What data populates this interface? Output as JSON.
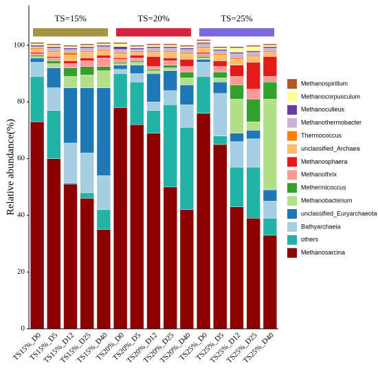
{
  "chart_data": {
    "type": "stacked_bar",
    "y_label": "Relative abundance(%)",
    "ylim": [
      0,
      114
    ],
    "yticks": [
      0,
      20,
      40,
      60,
      80,
      100
    ],
    "groups": [
      {
        "name": "TS=15%",
        "color": "#a8973a"
      },
      {
        "name": "TS=20%",
        "color": "#d6243f"
      },
      {
        "name": "TS=25%",
        "color": "#7b68e6"
      }
    ],
    "categories": [
      "TS15%_D0",
      "TS15%_D5",
      "TS15%_D12",
      "TS15%_D25",
      "TS15%_D40",
      "TS20%_D0",
      "TS20%_D5",
      "TS20%_D12",
      "TS20%_D25",
      "TS20%_D40",
      "TS25%_D0",
      "TS25%_D5",
      "TS25%_D12",
      "TS25%_D25",
      "TS25%_D40"
    ],
    "series": [
      {
        "name": "Methanosarcina",
        "color": "#8b0000",
        "values": [
          73,
          60,
          51,
          46,
          35,
          78,
          72,
          69,
          50,
          42,
          76,
          65,
          43,
          39,
          33
        ]
      },
      {
        "name": "others",
        "color": "#22b3a6",
        "values": [
          16,
          17,
          0.5,
          2,
          7,
          12,
          15,
          8,
          29,
          29,
          13,
          3,
          14,
          18,
          6
        ]
      },
      {
        "name": "Bathyarchaeia",
        "color": "#a6cee3",
        "values": [
          5,
          8,
          14,
          14,
          12,
          1.5,
          3,
          3,
          5,
          8,
          5,
          15,
          9,
          10,
          6
        ]
      },
      {
        "name": "unclassified_Euryarchaeota",
        "color": "#1f78b4",
        "values": [
          1.5,
          7,
          19.5,
          23,
          31,
          1.5,
          3,
          10,
          7,
          7,
          1,
          4,
          3,
          3,
          4
        ]
      },
      {
        "name": "Methanobacterium",
        "color": "#b2df8a",
        "values": [
          0.5,
          1.5,
          4,
          4.5,
          6,
          0.5,
          1,
          1,
          1,
          2.5,
          0.5,
          1.5,
          12,
          3,
          32
        ]
      },
      {
        "name": "Methermicoccus",
        "color": "#33a02c",
        "values": [
          0.5,
          1,
          3,
          3,
          1.5,
          0.5,
          0.5,
          0.5,
          1,
          2,
          0.5,
          2,
          5,
          8,
          6
        ]
      },
      {
        "name": "Methanothrix",
        "color": "#fb9a99",
        "values": [
          0.5,
          1,
          1.5,
          2,
          3,
          1,
          1,
          1,
          1.5,
          2,
          1,
          2,
          3,
          3.5,
          2
        ]
      },
      {
        "name": "Methanosphaera",
        "color": "#e31a1c",
        "values": [
          0.5,
          0.5,
          1,
          1,
          1,
          0.5,
          1,
          3.5,
          1,
          2.5,
          0.5,
          2,
          4,
          9.5,
          7
        ]
      },
      {
        "name": "unclassified_Archaea",
        "color": "#fdbf6f",
        "values": [
          1,
          1.5,
          2,
          2,
          1.5,
          1.5,
          1,
          1.5,
          2,
          2,
          1.5,
          2,
          2,
          2,
          1.5
        ]
      },
      {
        "name": "Thermococcus",
        "color": "#ff7f00",
        "values": [
          0.5,
          0.5,
          1,
          0.5,
          0.5,
          0.5,
          0.5,
          0.5,
          0.5,
          0.5,
          0.5,
          0.5,
          0.5,
          0.5,
          0.5
        ]
      },
      {
        "name": "Methanothermobacter",
        "color": "#cab2d6",
        "values": [
          0.5,
          1,
          1,
          1,
          1,
          1,
          0.5,
          1,
          1,
          1,
          1,
          1,
          1.5,
          1,
          1
        ]
      },
      {
        "name": "Methanoculleus",
        "color": "#6a3d9a",
        "values": [
          0.5,
          0.5,
          0.5,
          0.5,
          0.5,
          1,
          0.5,
          0.5,
          0.5,
          0.5,
          0.5,
          0.5,
          0.5,
          0.5,
          0.5
        ]
      },
      {
        "name": "Methanocorpusculum",
        "color": "#ffff99",
        "values": [
          0.5,
          0.5,
          0.5,
          0.5,
          0.5,
          1,
          0.5,
          0.5,
          0.5,
          0.5,
          0.5,
          0.5,
          1.5,
          1.5,
          0.5
        ]
      },
      {
        "name": "Methanospirillum",
        "color": "#b15928",
        "values": [
          0.5,
          0.5,
          0.5,
          0.5,
          0.5,
          0.5,
          0.5,
          0.5,
          0.5,
          0.5,
          0.5,
          0.5,
          0.5,
          0.5,
          0.5
        ]
      }
    ]
  }
}
